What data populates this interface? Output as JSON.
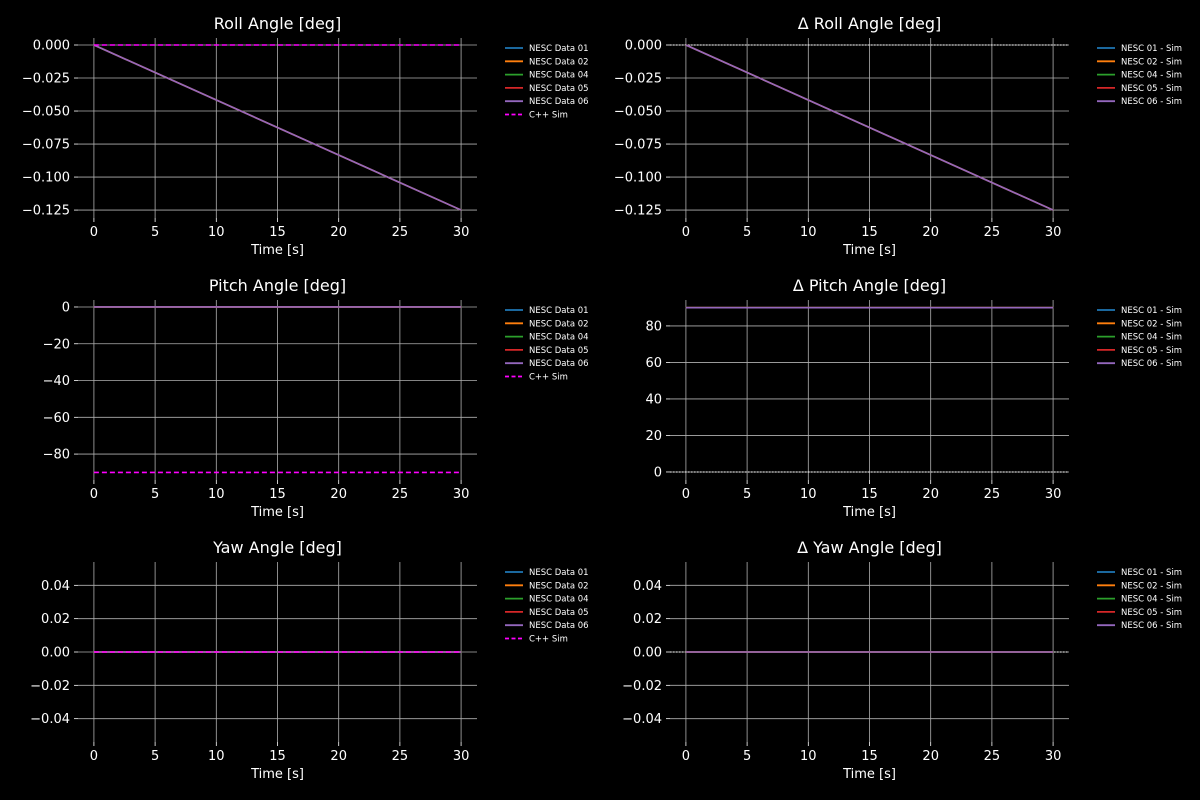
{
  "chart_data": [
    {
      "type": "line",
      "title": "Roll Angle [deg]",
      "xlabel": "Time [s]",
      "ylabel": "",
      "xlim": [
        -1.3,
        31.3
      ],
      "ylim": [
        -0.131,
        0.0053
      ],
      "xticks": [
        0,
        5,
        10,
        15,
        20,
        25,
        30
      ],
      "yticks": [
        0.0,
        -0.025,
        -0.05,
        -0.075,
        -0.1,
        -0.125
      ],
      "ytick_labels": [
        "0.000",
        "−0.025",
        "−0.050",
        "−0.075",
        "−0.100",
        "−0.125"
      ],
      "grid": true,
      "legend": "outside-right",
      "series": [
        {
          "name": "NESC Data 01",
          "color": "#1f77b4",
          "style": "solid",
          "x": [
            0,
            30
          ],
          "y": [
            0,
            -0.125
          ]
        },
        {
          "name": "NESC Data 02",
          "color": "#ff7f0e",
          "style": "solid",
          "x": [
            0,
            30
          ],
          "y": [
            0,
            -0.125
          ]
        },
        {
          "name": "NESC Data 04",
          "color": "#2ca02c",
          "style": "solid",
          "x": [
            0,
            30
          ],
          "y": [
            0,
            -0.125
          ]
        },
        {
          "name": "NESC Data 05",
          "color": "#d62728",
          "style": "solid",
          "x": [
            0,
            30
          ],
          "y": [
            0,
            -0.125
          ]
        },
        {
          "name": "NESC Data 06",
          "color": "#9467bd",
          "style": "solid",
          "x": [
            0,
            30
          ],
          "y": [
            0,
            -0.125
          ]
        },
        {
          "name": "C++ Sim",
          "color": "#ff00ff",
          "style": "dashed",
          "x": [
            0,
            30
          ],
          "y": [
            0,
            0
          ]
        }
      ]
    },
    {
      "type": "line",
      "title": "Δ Roll Angle [deg]",
      "xlabel": "Time [s]",
      "ylabel": "",
      "xlim": [
        -1.3,
        31.3
      ],
      "ylim": [
        -0.131,
        0.0053
      ],
      "xticks": [
        0,
        5,
        10,
        15,
        20,
        25,
        30
      ],
      "yticks": [
        0.0,
        -0.025,
        -0.05,
        -0.075,
        -0.1,
        -0.125
      ],
      "ytick_labels": [
        "0.000",
        "−0.025",
        "−0.050",
        "−0.075",
        "−0.100",
        "−0.125"
      ],
      "grid": true,
      "legend": "outside-right",
      "zero_line": true,
      "series": [
        {
          "name": "NESC 01 - Sim",
          "color": "#1f77b4",
          "style": "solid",
          "x": [
            0,
            30
          ],
          "y": [
            0,
            -0.125
          ]
        },
        {
          "name": "NESC 02 - Sim",
          "color": "#ff7f0e",
          "style": "solid",
          "x": [
            0,
            30
          ],
          "y": [
            0,
            -0.125
          ]
        },
        {
          "name": "NESC 04 - Sim",
          "color": "#2ca02c",
          "style": "solid",
          "x": [
            0,
            30
          ],
          "y": [
            0,
            -0.125
          ]
        },
        {
          "name": "NESC 05 - Sim",
          "color": "#d62728",
          "style": "solid",
          "x": [
            0,
            30
          ],
          "y": [
            0,
            -0.125
          ]
        },
        {
          "name": "NESC 06 - Sim",
          "color": "#9467bd",
          "style": "solid",
          "x": [
            0,
            30
          ],
          "y": [
            0,
            -0.125
          ]
        }
      ]
    },
    {
      "type": "line",
      "title": "Pitch Angle [deg]",
      "xlabel": "Time [s]",
      "ylabel": "",
      "xlim": [
        -1.3,
        31.3
      ],
      "ylim": [
        -94.1,
        3.8
      ],
      "xticks": [
        0,
        5,
        10,
        15,
        20,
        25,
        30
      ],
      "yticks": [
        0,
        -20,
        -40,
        -60,
        -80
      ],
      "ytick_labels": [
        "0",
        "−20",
        "−40",
        "−60",
        "−80"
      ],
      "grid": true,
      "legend": "outside-right",
      "series": [
        {
          "name": "NESC Data 01",
          "color": "#1f77b4",
          "style": "solid",
          "x": [
            0,
            30
          ],
          "y": [
            0,
            0
          ]
        },
        {
          "name": "NESC Data 02",
          "color": "#ff7f0e",
          "style": "solid",
          "x": [
            0,
            30
          ],
          "y": [
            0,
            0
          ]
        },
        {
          "name": "NESC Data 04",
          "color": "#2ca02c",
          "style": "solid",
          "x": [
            0,
            30
          ],
          "y": [
            0,
            0
          ]
        },
        {
          "name": "NESC Data 05",
          "color": "#d62728",
          "style": "solid",
          "x": [
            0,
            30
          ],
          "y": [
            0,
            0
          ]
        },
        {
          "name": "NESC Data 06",
          "color": "#9467bd",
          "style": "solid",
          "x": [
            0,
            30
          ],
          "y": [
            0,
            0
          ]
        },
        {
          "name": "C++ Sim",
          "color": "#ff00ff",
          "style": "dashed",
          "x": [
            0,
            30
          ],
          "y": [
            -90,
            -90
          ]
        }
      ]
    },
    {
      "type": "line",
      "title": "Δ Pitch Angle [deg]",
      "xlabel": "Time [s]",
      "ylabel": "",
      "xlim": [
        -1.3,
        31.3
      ],
      "ylim": [
        -4.4,
        94.2
      ],
      "xticks": [
        0,
        5,
        10,
        15,
        20,
        25,
        30
      ],
      "yticks": [
        0,
        20,
        40,
        60,
        80
      ],
      "ytick_labels": [
        "0",
        "20",
        "40",
        "60",
        "80"
      ],
      "grid": true,
      "legend": "outside-right",
      "zero_line": true,
      "series": [
        {
          "name": "NESC 01 - Sim",
          "color": "#1f77b4",
          "style": "solid",
          "x": [
            0,
            30
          ],
          "y": [
            90,
            90
          ]
        },
        {
          "name": "NESC 02 - Sim",
          "color": "#ff7f0e",
          "style": "solid",
          "x": [
            0,
            30
          ],
          "y": [
            90,
            90
          ]
        },
        {
          "name": "NESC 04 - Sim",
          "color": "#2ca02c",
          "style": "solid",
          "x": [
            0,
            30
          ],
          "y": [
            90,
            90
          ]
        },
        {
          "name": "NESC 05 - Sim",
          "color": "#d62728",
          "style": "solid",
          "x": [
            0,
            30
          ],
          "y": [
            90,
            90
          ]
        },
        {
          "name": "NESC 06 - Sim",
          "color": "#9467bd",
          "style": "solid",
          "x": [
            0,
            30
          ],
          "y": [
            90,
            90
          ]
        }
      ]
    },
    {
      "type": "line",
      "title": "Yaw Angle [deg]",
      "xlabel": "Time [s]",
      "ylabel": "",
      "xlim": [
        -1.3,
        31.3
      ],
      "ylim": [
        -0.054,
        0.054
      ],
      "xticks": [
        0,
        5,
        10,
        15,
        20,
        25,
        30
      ],
      "yticks": [
        0.04,
        0.02,
        0.0,
        -0.02,
        -0.04
      ],
      "ytick_labels": [
        "0.04",
        "0.02",
        "0.00",
        "−0.02",
        "−0.04"
      ],
      "grid": true,
      "legend": "outside-right",
      "series": [
        {
          "name": "NESC Data 01",
          "color": "#1f77b4",
          "style": "solid",
          "x": [
            0,
            30
          ],
          "y": [
            0,
            0
          ]
        },
        {
          "name": "NESC Data 02",
          "color": "#ff7f0e",
          "style": "solid",
          "x": [
            0,
            30
          ],
          "y": [
            0,
            0
          ]
        },
        {
          "name": "NESC Data 04",
          "color": "#2ca02c",
          "style": "solid",
          "x": [
            0,
            30
          ],
          "y": [
            0,
            0
          ]
        },
        {
          "name": "NESC Data 05",
          "color": "#d62728",
          "style": "solid",
          "x": [
            0,
            30
          ],
          "y": [
            0,
            0
          ]
        },
        {
          "name": "NESC Data 06",
          "color": "#9467bd",
          "style": "solid",
          "x": [
            0,
            30
          ],
          "y": [
            0,
            0
          ]
        },
        {
          "name": "C++ Sim",
          "color": "#ff00ff",
          "style": "dashed",
          "x": [
            0,
            30
          ],
          "y": [
            0,
            0
          ]
        }
      ]
    },
    {
      "type": "line",
      "title": "Δ Yaw Angle [deg]",
      "xlabel": "Time [s]",
      "ylabel": "",
      "xlim": [
        -1.3,
        31.3
      ],
      "ylim": [
        -0.054,
        0.054
      ],
      "xticks": [
        0,
        5,
        10,
        15,
        20,
        25,
        30
      ],
      "yticks": [
        0.04,
        0.02,
        0.0,
        -0.02,
        -0.04
      ],
      "ytick_labels": [
        "0.04",
        "0.02",
        "0.00",
        "−0.02",
        "−0.04"
      ],
      "grid": true,
      "legend": "outside-right",
      "zero_line": true,
      "series": [
        {
          "name": "NESC 01 - Sim",
          "color": "#1f77b4",
          "style": "solid",
          "x": [
            0,
            30
          ],
          "y": [
            0,
            0
          ]
        },
        {
          "name": "NESC 02 - Sim",
          "color": "#ff7f0e",
          "style": "solid",
          "x": [
            0,
            30
          ],
          "y": [
            0,
            0
          ]
        },
        {
          "name": "NESC 04 - Sim",
          "color": "#2ca02c",
          "style": "solid",
          "x": [
            0,
            30
          ],
          "y": [
            0,
            0
          ]
        },
        {
          "name": "NESC 05 - Sim",
          "color": "#d62728",
          "style": "solid",
          "x": [
            0,
            30
          ],
          "y": [
            0,
            0
          ]
        },
        {
          "name": "NESC 06 - Sim",
          "color": "#9467bd",
          "style": "solid",
          "x": [
            0,
            30
          ],
          "y": [
            0,
            0
          ]
        }
      ]
    }
  ]
}
